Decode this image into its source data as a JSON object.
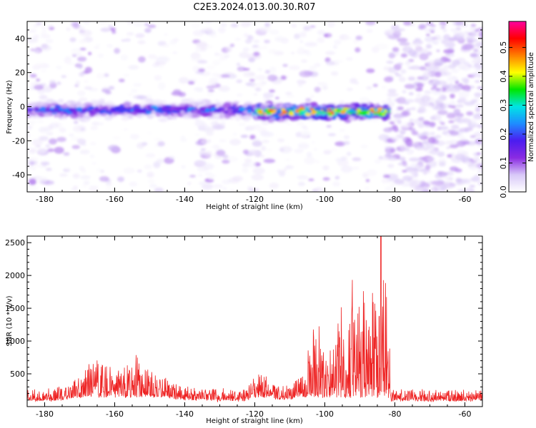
{
  "figure": {
    "title": "C2E3.2024.013.00.30.R07"
  },
  "chart_data": [
    {
      "type": "heatmap",
      "title": "C2E3.2024.013.00.30.R07",
      "xlabel": "Height of straight line (km)",
      "ylabel": "Frequency (Hz)",
      "xlim": [
        -185,
        -55
      ],
      "ylim": [
        -50,
        50
      ],
      "xticks": [
        -180,
        -160,
        -140,
        -120,
        -100,
        -80,
        -60
      ],
      "yticks": [
        -40,
        -20,
        0,
        20,
        40
      ],
      "colorbar": {
        "label": "Normalized spectral amplitude",
        "range": [
          0.0,
          0.59
        ],
        "ticks": [
          0.0,
          0.1,
          0.2,
          0.3,
          0.4,
          0.5
        ],
        "colormap": [
          "#ffffff",
          "#d8c8f8",
          "#8a2be2",
          "#4b1cf0",
          "#1e8cff",
          "#00e5e5",
          "#00e600",
          "#ffff00",
          "#ff7f00",
          "#ff0000",
          "#ff00a0"
        ]
      },
      "bands": [
        {
          "x": [
            -185,
            -120
          ],
          "center_hz": -2,
          "peak_amplitude": 0.25
        },
        {
          "x": [
            -120,
            -82
          ],
          "center_hz": -3,
          "peak_amplitude": 0.5
        }
      ],
      "noise_region": {
        "x": [
          -82,
          -55
        ],
        "amplitude": 0.08
      },
      "grid": false
    },
    {
      "type": "line",
      "xlabel": "Height of straight line (km)",
      "ylabel": "SNR (10 * v/v)",
      "xlim": [
        -185,
        -55
      ],
      "ylim": [
        0,
        2600
      ],
      "xticks": [
        -180,
        -160,
        -140,
        -120,
        -100,
        -80,
        -60
      ],
      "yticks": [
        500,
        1000,
        1500,
        2000,
        2500
      ],
      "line_color": "#ee2222",
      "envelope": {
        "x": [
          -185,
          -180,
          -175,
          -170,
          -166,
          -162,
          -158,
          -154,
          -150,
          -146,
          -142,
          -138,
          -134,
          -130,
          -126,
          -122,
          -118,
          -114,
          -110,
          -106,
          -104,
          -102,
          -100,
          -98,
          -96,
          -94,
          -92,
          -90,
          -88,
          -86,
          -84,
          -82.5,
          -81,
          -78,
          -70,
          -60,
          -55
        ],
        "y": [
          300,
          250,
          300,
          450,
          850,
          650,
          550,
          800,
          550,
          450,
          350,
          300,
          280,
          270,
          260,
          300,
          600,
          320,
          350,
          500,
          1200,
          1400,
          700,
          1000,
          1600,
          1500,
          2000,
          2100,
          1700,
          1900,
          1500,
          2500,
          250,
          280,
          250,
          260,
          270
        ]
      },
      "peak": {
        "x": -84,
        "y": 2600
      },
      "grid": false
    }
  ]
}
